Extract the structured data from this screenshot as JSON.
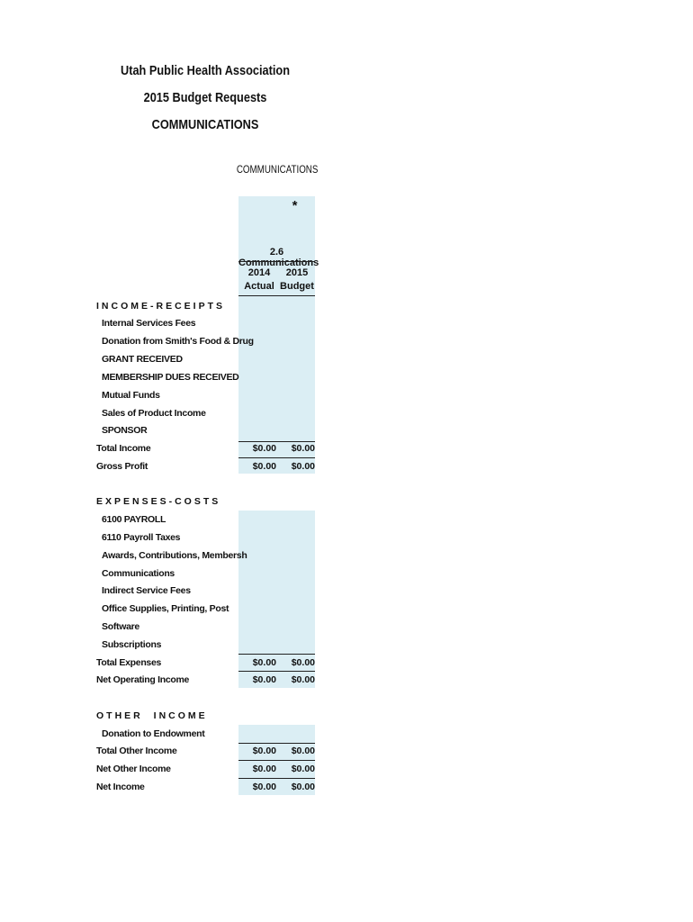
{
  "header": {
    "line1": "Utah Public Health Association",
    "line2": "2015 Budget Requests",
    "line3": "COMMUNICATIONS"
  },
  "column_group": {
    "top_label": "COMMUNICATIONS",
    "marker": "*",
    "name": "2.6 Communications",
    "col1_year": "2014",
    "col1_type": "Actual",
    "col2_year": "2015",
    "col2_type": "Budget"
  },
  "income": {
    "heading": "INCOME-RECEIPTS",
    "items": [
      "Internal Services Fees",
      "Donation from Smith's Food & Drug",
      "GRANT RECEIVED",
      "MEMBERSHIP DUES RECEIVED",
      "Mutual Funds",
      "Sales of Product Income",
      "SPONSOR"
    ],
    "total_income": {
      "label": "Total Income",
      "v2014": "$0.00",
      "v2015": "$0.00"
    },
    "gross_profit": {
      "label": "Gross Profit",
      "v2014": "$0.00",
      "v2015": "$0.00"
    }
  },
  "expenses": {
    "heading": "EXPENSES-COSTS",
    "items": [
      "6100 PAYROLL",
      "6110 Payroll Taxes",
      "Awards, Contributions, Membersh",
      "Communications",
      "Indirect Service Fees",
      "Office Supplies, Printing, Post",
      "Software",
      "Subscriptions"
    ],
    "total_expenses": {
      "label": "Total Expenses",
      "v2014": "$0.00",
      "v2015": "$0.00"
    },
    "net_operating": {
      "label": "Net Operating Income",
      "v2014": "$0.00",
      "v2015": "$0.00"
    }
  },
  "other": {
    "heading": "OTHER INCOME",
    "items": [
      "Donation to Endowment"
    ],
    "total_other": {
      "label": "Total Other Income",
      "v2014": "$0.00",
      "v2015": "$0.00"
    },
    "net_other": {
      "label": "Net Other Income",
      "v2014": "$0.00",
      "v2015": "$0.00"
    },
    "net_income": {
      "label": "Net Income",
      "v2014": "$0.00",
      "v2015": "$0.00"
    }
  },
  "colors": {
    "cell_fill": "#dbeef4"
  }
}
